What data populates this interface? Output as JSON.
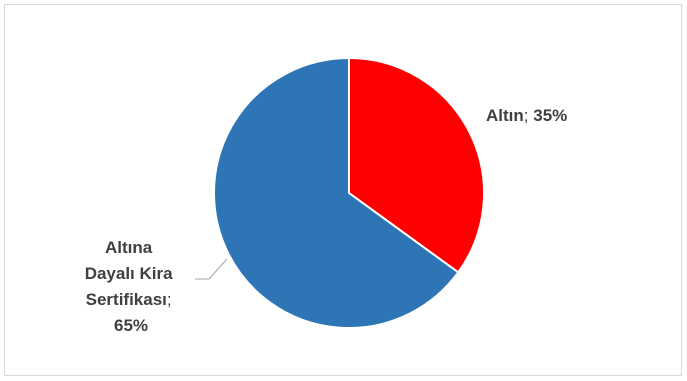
{
  "chart_data": {
    "type": "pie",
    "slices": [
      {
        "name": "Altın",
        "value": 35,
        "label_lines": [
          {
            "bold": "Altın",
            "normal": "; ",
            "bold2": "35%"
          }
        ],
        "color": "#ff0000"
      },
      {
        "name": "Altına Dayalı Kira Sertifikası",
        "value": 65,
        "label_lines": [
          {
            "bold": "Altına",
            "normal": "",
            "bold2": ""
          },
          {
            "bold": "Dayalı Kira",
            "normal": "",
            "bold2": ""
          },
          {
            "bold": "Sertifikası",
            "normal": ";",
            "bold2": ""
          },
          {
            "bold": "65%",
            "normal": "",
            "bold2": ""
          }
        ],
        "color": "#2e75b6"
      }
    ],
    "start_angle_deg": 0,
    "direction": "clockwise",
    "legend": "none"
  },
  "colors": {
    "slice_border": "#ffffff",
    "leader_line": "#a6a6a6",
    "frame_border": "#d9d9d9",
    "label_text": "#404040"
  }
}
